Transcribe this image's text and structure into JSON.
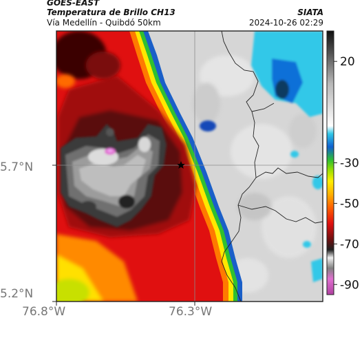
{
  "header": {
    "satellite": "GOES-EAST",
    "product": "Temperatura de Brillo CH13",
    "subtitle": "Vía Medellín - Quibdó 50km",
    "organization": "SIATA",
    "timestamp": "2024-10-26 02:29"
  },
  "map": {
    "lat_labels": [
      "5.7°N",
      "5.2°N"
    ],
    "lon_labels": [
      "76.8°W",
      "76.3°W"
    ],
    "marker_icon": "star-icon"
  },
  "colorbar": {
    "tick_labels": [
      "20",
      "-30",
      "-50",
      "-70",
      "-90"
    ],
    "tick_values": [
      20,
      -30,
      -50,
      -70,
      -90
    ],
    "range": [
      -95,
      35
    ],
    "colors": {
      "cold_magenta": "#a0308f",
      "cold_gray": "#9a9a9a",
      "black": "#111111",
      "red": "#e01010",
      "orange": "#ff7a00",
      "yellow": "#ffee00",
      "green": "#33c033",
      "blue": "#1060d0",
      "cyan": "#30c8e8",
      "warm_gray": "#dcdcdc"
    }
  }
}
